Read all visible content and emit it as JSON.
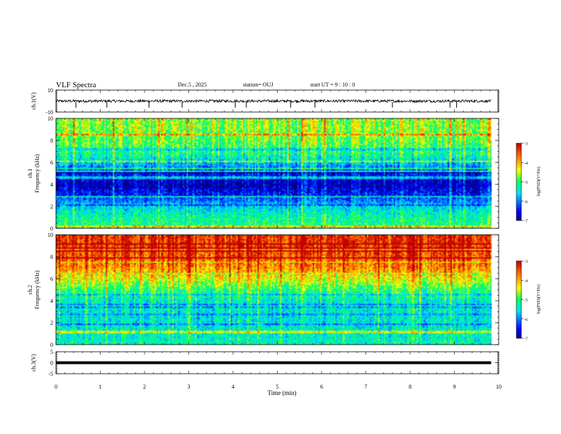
{
  "header": {
    "title": "VLF Spectra",
    "date": "Dec.5 , 2025",
    "station": "station= OUJ",
    "start": "start UT = 9 : 10 : 0"
  },
  "chart_data": [
    {
      "type": "line",
      "name": "ch1-waveform",
      "ylabel": "ch.1(V)",
      "ylim": [
        -10,
        10
      ],
      "yticks": [
        "10",
        "-10"
      ],
      "xlim": [
        0,
        10
      ],
      "trace_level": 0,
      "trace_amplitude": 1.2,
      "spike_times": [
        0.45,
        1.15,
        2.1,
        2.85,
        4.05,
        4.3,
        5.3,
        5.85,
        7.6,
        8.9,
        9.05
      ]
    },
    {
      "type": "heatmap",
      "name": "ch1-spectrogram",
      "ylabel": "ch.1\nFrequency (kHz)",
      "ylim": [
        0,
        10
      ],
      "yticks": [
        "0",
        "2",
        "4",
        "6",
        "8",
        "10"
      ],
      "xlim": [
        0,
        10
      ],
      "colorbar": {
        "label": "log(PSD)(V²/Hz)",
        "range": [
          -7,
          -3
        ],
        "ticks": [
          "-3",
          "-4",
          "-5",
          "-6",
          "-7"
        ]
      },
      "profile_log_psd": [
        {
          "f": 0.0,
          "v": -5.0
        },
        {
          "f": 1.0,
          "v": -5.2
        },
        {
          "f": 2.0,
          "v": -5.6
        },
        {
          "f": 3.0,
          "v": -6.4
        },
        {
          "f": 4.0,
          "v": -6.8
        },
        {
          "f": 5.0,
          "v": -6.4
        },
        {
          "f": 6.0,
          "v": -5.6
        },
        {
          "f": 7.0,
          "v": -5.0
        },
        {
          "f": 8.5,
          "v": -4.7
        },
        {
          "f": 10.0,
          "v": -4.6
        }
      ]
    },
    {
      "type": "heatmap",
      "name": "ch2-spectrogram",
      "ylabel": "ch.2\nFrequency (kHz)",
      "ylim": [
        0,
        10
      ],
      "yticks": [
        "0",
        "2",
        "4",
        "6",
        "8",
        "10"
      ],
      "xlim": [
        0,
        10
      ],
      "colorbar": {
        "label": "log(PSD)(V²/Hz)",
        "range": [
          -7,
          -3
        ],
        "ticks": [
          "-3",
          "-4",
          "-5",
          "-6",
          "-7"
        ]
      },
      "profile_log_psd": [
        {
          "f": 0.0,
          "v": -5.3
        },
        {
          "f": 2.0,
          "v": -5.5
        },
        {
          "f": 4.0,
          "v": -5.4
        },
        {
          "f": 5.0,
          "v": -5.0
        },
        {
          "f": 6.0,
          "v": -4.4
        },
        {
          "f": 7.0,
          "v": -3.8
        },
        {
          "f": 8.5,
          "v": -3.4
        },
        {
          "f": 10.0,
          "v": -3.3
        }
      ]
    },
    {
      "type": "line",
      "name": "ch3-waveform",
      "ylabel": "ch.3(V)",
      "ylim": [
        -5,
        5
      ],
      "yticks": [
        "5",
        "0",
        "-5"
      ],
      "xlim": [
        0,
        10
      ],
      "trace_level": 0,
      "trace_amplitude": 0.2
    }
  ],
  "xaxis": {
    "label": "Time (min)",
    "ticks": [
      "0",
      "1",
      "2",
      "3",
      "4",
      "5",
      "6",
      "7",
      "8",
      "9",
      "10"
    ],
    "data_end": 9.83
  }
}
